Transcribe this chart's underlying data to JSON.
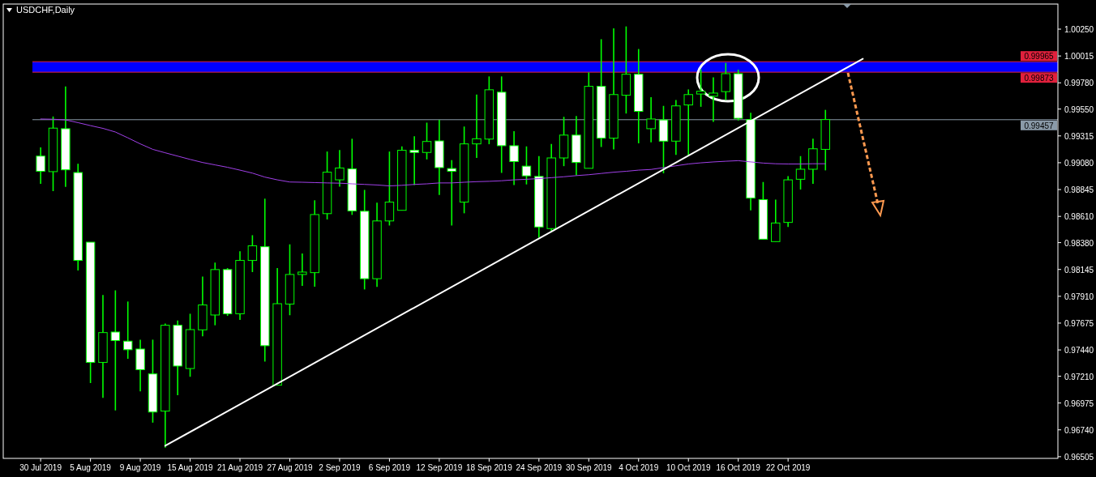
{
  "chart_data": {
    "type": "candlestick",
    "title": "USDCHF,Daily",
    "categories": [
      "30 Jul 2019",
      null,
      null,
      null,
      "5 Aug 2019",
      null,
      null,
      null,
      "9 Aug 2019",
      null,
      null,
      null,
      "15 Aug 2019",
      null,
      null,
      null,
      "21 Aug 2019",
      null,
      null,
      null,
      "27 Aug 2019",
      null,
      null,
      null,
      "2 Sep 2019",
      null,
      null,
      null,
      "6 Sep 2019",
      null,
      null,
      null,
      "12 Sep 2019",
      null,
      null,
      null,
      "18 Sep 2019",
      null,
      null,
      null,
      "24 Sep 2019",
      null,
      null,
      null,
      "30 Sep 2019",
      null,
      null,
      null,
      "4 Oct 2019",
      null,
      null,
      null,
      "10 Oct 2019",
      null,
      null,
      null,
      "16 Oct 2019",
      null,
      null,
      null,
      "22 Oct 2019",
      null,
      null,
      null,
      null,
      null,
      null,
      null,
      null,
      null,
      null,
      null,
      null,
      null,
      null,
      null,
      null,
      null,
      null,
      null,
      null,
      null
    ],
    "ohlc": [
      [
        0.99138,
        0.99215,
        0.98895,
        0.99005
      ],
      [
        0.99002,
        0.99485,
        0.98831,
        0.99383
      ],
      [
        0.99378,
        0.99749,
        0.98869,
        0.99018
      ],
      [
        0.98994,
        0.99071,
        0.98136,
        0.98224
      ],
      [
        0.98384,
        0.98384,
        0.9715,
        0.97331
      ],
      [
        0.97331,
        0.97922,
        0.97021,
        0.97592
      ],
      [
        0.97597,
        0.97962,
        0.9691,
        0.97522
      ],
      [
        0.97517,
        0.97864,
        0.97362,
        0.97442
      ],
      [
        0.97448,
        0.9753,
        0.97077,
        0.97267
      ],
      [
        0.9723,
        0.9753,
        0.96803,
        0.96896
      ],
      [
        0.96904,
        0.97672,
        0.96584,
        0.97656
      ],
      [
        0.97656,
        0.97698,
        0.97043,
        0.97299
      ],
      [
        0.97277,
        0.97757,
        0.97205,
        0.97618
      ],
      [
        0.97616,
        0.98082,
        0.9756,
        0.97834
      ],
      [
        0.97746,
        0.98205,
        0.97656,
        0.98144
      ],
      [
        0.98144,
        0.98157,
        0.97738,
        0.97757
      ],
      [
        0.97757,
        0.98304,
        0.97704,
        0.98224
      ],
      [
        0.98224,
        0.98445,
        0.98122,
        0.98352
      ],
      [
        0.98344,
        0.98765,
        0.97338,
        0.97477
      ],
      [
        0.97131,
        0.98157,
        0.97131,
        0.97845
      ],
      [
        0.97842,
        0.98365,
        0.97744,
        0.98101
      ],
      [
        0.98101,
        0.98285,
        0.98002,
        0.98122
      ],
      [
        0.98117,
        0.98751,
        0.97994,
        0.98626
      ],
      [
        0.98634,
        0.99178,
        0.98583,
        0.98997
      ],
      [
        0.9893,
        0.99191,
        0.98871,
        0.99034
      ],
      [
        0.99026,
        0.9929,
        0.98623,
        0.98658
      ],
      [
        0.98655,
        0.98842,
        0.9797,
        0.98064
      ],
      [
        0.98064,
        0.9873,
        0.97992,
        0.9857
      ],
      [
        0.9857,
        0.99178,
        0.9853,
        0.98735
      ],
      [
        0.98663,
        0.99223,
        0.98663,
        0.99189
      ],
      [
        0.99189,
        0.99311,
        0.98885,
        0.9917
      ],
      [
        0.9917,
        0.99431,
        0.99109,
        0.99266
      ],
      [
        0.99271,
        0.99455,
        0.98797,
        0.99037
      ],
      [
        0.99029,
        0.99103,
        0.9853,
        0.99005
      ],
      [
        0.98735,
        0.99397,
        0.98637,
        0.99245
      ],
      [
        0.99245,
        0.99677,
        0.99122,
        0.9929
      ],
      [
        0.99287,
        0.99836,
        0.99242,
        0.99719
      ],
      [
        0.99698,
        0.99836,
        0.98991,
        0.99229
      ],
      [
        0.99229,
        0.99357,
        0.98885,
        0.9909
      ],
      [
        0.9905,
        0.99223,
        0.9889,
        0.98965
      ],
      [
        0.9896,
        0.99138,
        0.98424,
        0.98517
      ],
      [
        0.98503,
        0.99245,
        0.98482,
        0.99122
      ],
      [
        0.99122,
        0.99482,
        0.9905,
        0.99322
      ],
      [
        0.99322,
        0.9949,
        0.9897,
        0.99082
      ],
      [
        0.99031,
        0.99871,
        0.99031,
        0.99749
      ],
      [
        0.99749,
        1.00162,
        0.99218,
        0.99295
      ],
      [
        0.99295,
        1.00258,
        0.99197,
        0.99677
      ],
      [
        0.99671,
        1.00274,
        0.99511,
        0.99855
      ],
      [
        0.99855,
        1.00076,
        0.9925,
        0.9953
      ],
      [
        0.99378,
        0.99655,
        0.99258,
        0.99463
      ],
      [
        0.99455,
        0.99578,
        0.98987,
        0.99269
      ],
      [
        0.99269,
        0.99629,
        0.99149,
        0.99578
      ],
      [
        0.99586,
        0.99722,
        0.99138,
        0.99677
      ],
      [
        0.99682,
        0.99898,
        0.9957,
        0.99706
      ],
      [
        0.99663,
        0.99828,
        0.99437,
        0.9969
      ],
      [
        0.99703,
        0.99954,
        0.99629,
        0.9986
      ],
      [
        0.9986,
        0.99895,
        0.9945,
        0.99469
      ],
      [
        0.99458,
        0.99517,
        0.98663,
        0.9877
      ],
      [
        0.98757,
        0.98911,
        0.9841,
        0.9841
      ],
      [
        0.98389,
        0.98757,
        0.98389,
        0.98552
      ],
      [
        0.98557,
        0.98962,
        0.98517,
        0.9893
      ],
      [
        0.98935,
        0.99138,
        0.98845,
        0.99023
      ],
      [
        0.99023,
        0.9929,
        0.98895,
        0.99202
      ],
      [
        0.99197,
        0.99543,
        0.99013,
        0.99458
      ],
      null,
      null,
      null,
      null,
      null,
      null,
      null,
      null,
      null,
      null,
      null,
      null,
      null,
      null,
      null,
      null,
      null,
      null
    ],
    "series": [
      {
        "type": "line",
        "color": "#a040e8",
        "values": [
          0.99463,
          0.99461,
          0.99455,
          0.99431,
          0.99405,
          0.99381,
          0.99349,
          0.99298,
          0.99245,
          0.99197,
          0.99167,
          0.99138,
          0.99109,
          0.99082,
          0.99061,
          0.9904,
          0.99015,
          0.98989,
          0.98954,
          0.9893,
          0.98911,
          0.98909,
          0.98906,
          0.98903,
          0.98901,
          0.98895,
          0.9889,
          0.98885,
          0.98877,
          0.98882,
          0.9889,
          0.98895,
          0.98903,
          0.98903,
          0.98909,
          0.98914,
          0.98917,
          0.98922,
          0.9893,
          0.98935,
          0.98941,
          0.98949,
          0.98957,
          0.98967,
          0.98975,
          0.98986,
          0.98997,
          0.99005,
          0.99015,
          0.99021,
          0.99037,
          0.99053,
          0.99069,
          0.99079,
          0.99087,
          0.99093,
          0.99098,
          0.99087,
          0.99077,
          0.99071,
          0.99069,
          0.99069,
          0.99071,
          0.99071,
          null,
          null,
          null,
          null,
          null,
          null,
          null,
          null,
          null,
          null,
          null,
          null,
          null,
          null,
          null,
          null,
          null,
          null
        ]
      },
      {
        "type": "line",
        "color": "#ffffff",
        "values": [
          null,
          null,
          null,
          null,
          null,
          null,
          null,
          null,
          null,
          null,
          0.966,
          null,
          null,
          null,
          null,
          null,
          null,
          null,
          null,
          null,
          null,
          null,
          null,
          null,
          null,
          null,
          null,
          null,
          null,
          null,
          null,
          null,
          null,
          null,
          null,
          null,
          null,
          null,
          null,
          null,
          null,
          null,
          null,
          null,
          null,
          null,
          null,
          null,
          null,
          null,
          null,
          null,
          null,
          null,
          null,
          null,
          null,
          null,
          null,
          null,
          null,
          null,
          null,
          null,
          null,
          null,
          0.9999,
          null,
          null,
          null,
          null,
          null,
          null,
          null,
          null,
          null,
          null,
          null,
          null,
          null,
          null,
          null
        ]
      }
    ],
    "ylim": [
      0.9649,
      1.0047
    ],
    "yticks": [
      0.96505,
      {
        "value": 0.9674,
        "label": "0.96740"
      },
      0.96975,
      {
        "value": 0.9721,
        "label": "0.97210"
      },
      {
        "value": 0.9744,
        "label": "0.97440"
      },
      0.97675,
      {
        "value": 0.9791,
        "label": "0.97910"
      },
      0.98145,
      {
        "value": 0.9838,
        "label": "0.98380"
      },
      {
        "value": 0.9861,
        "label": "0.98610"
      },
      0.98845,
      {
        "value": 0.9908,
        "label": "0.99080"
      },
      0.99315,
      {
        "value": 0.9955,
        "label": "0.99550"
      },
      {
        "value": 0.9978,
        "label": "0.99780"
      },
      1.00015,
      {
        "value": 1.0025,
        "label": "1.00250"
      }
    ],
    "bands": [
      {
        "axis": "y",
        "from": 0.99873,
        "to": 0.99965,
        "color": "#0000ff"
      }
    ],
    "ref_lines": [
      {
        "axis": "y",
        "value": 0.99965,
        "label": "0.99965",
        "color": "#e0203c"
      },
      {
        "axis": "y",
        "value": 0.99873,
        "label": "0.99873",
        "color": "#e0203c"
      },
      {
        "axis": "y",
        "value": 0.99457,
        "label": "0.99457",
        "color": "#8a9aa8"
      }
    ]
  }
}
